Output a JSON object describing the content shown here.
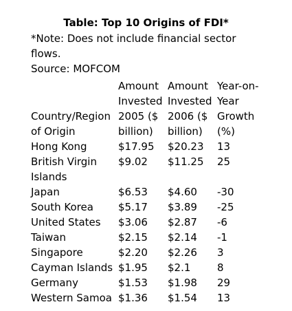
{
  "header": {
    "title": "Table: Top 10 Origins of FDI*",
    "note": "*Note: Does not include financial sector flows.",
    "source": "Source: MOFCOM"
  },
  "table": {
    "columns": [
      [
        "Country/Region",
        "of Origin"
      ],
      [
        "Amount",
        "Invested",
        "2005 ($",
        "billion)"
      ],
      [
        "Amount",
        "Invested",
        "2006 ($",
        "billion)"
      ],
      [
        "Year-on-",
        "Year",
        "Growth",
        "(%)"
      ]
    ],
    "rows": [
      [
        "Hong Kong",
        "$17.95",
        "$20.23",
        13
      ],
      [
        "British Virgin Islands",
        "$9.02",
        "$11.25",
        25
      ],
      [
        "Japan",
        "$6.53",
        "$4.60",
        -30
      ],
      [
        "South Korea",
        "$5.17",
        "$3.89",
        -25
      ],
      [
        "United States",
        "$3.06",
        "$2.87",
        -6
      ],
      [
        "Taiwan",
        "$2.15",
        "$2.14",
        -1
      ],
      [
        "Singapore",
        "$2.20",
        "$2.26",
        3
      ],
      [
        "Cayman Islands",
        "$1.95",
        "$2.1",
        8
      ],
      [
        "Germany",
        "$1.53",
        "$1.98",
        29
      ],
      [
        "Western Samoa",
        "$1.36",
        "$1.54",
        13
      ]
    ]
  }
}
